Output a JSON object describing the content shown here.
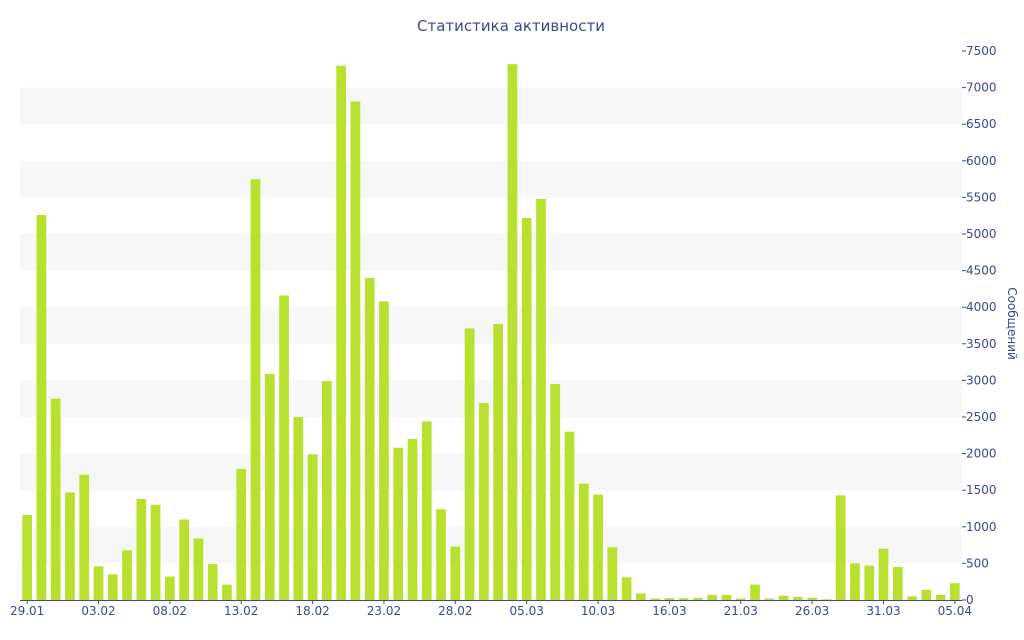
{
  "chart_data": {
    "type": "bar",
    "title": "Статистика активности",
    "xlabel": "",
    "ylabel": "Сообщений",
    "ylim": [
      0,
      7500
    ],
    "y_ticks": [
      0,
      500,
      1000,
      1500,
      2000,
      2500,
      3000,
      3500,
      4000,
      4500,
      5000,
      5500,
      6000,
      6500,
      7000,
      7500
    ],
    "y_axis_side": "right",
    "grid": "alternating horizontal bands",
    "bar_color": "#b8e02e",
    "x_tick_labels": [
      "29.01",
      "03.02",
      "08.02",
      "13.02",
      "18.02",
      "23.02",
      "28.02",
      "05.03",
      "10.03",
      "16.03",
      "21.03",
      "26.03",
      "31.03",
      "05.04"
    ],
    "x_tick_indices": [
      0,
      5,
      10,
      15,
      20,
      25,
      30,
      35,
      40,
      45,
      50,
      55,
      60,
      65
    ],
    "values": [
      1160,
      5260,
      2750,
      1470,
      1710,
      460,
      350,
      680,
      1380,
      1300,
      320,
      1100,
      840,
      490,
      210,
      1790,
      5750,
      3090,
      4160,
      2500,
      1990,
      2990,
      7300,
      6810,
      4400,
      4080,
      2080,
      2200,
      2440,
      1240,
      730,
      3710,
      2690,
      3770,
      7320,
      5220,
      5480,
      2950,
      2300,
      1590,
      1440,
      720,
      310,
      90,
      20,
      25,
      25,
      30,
      70,
      70,
      20,
      210,
      20,
      60,
      40,
      30,
      10,
      1430,
      500,
      470,
      700,
      450,
      50,
      140,
      70,
      230
    ]
  }
}
